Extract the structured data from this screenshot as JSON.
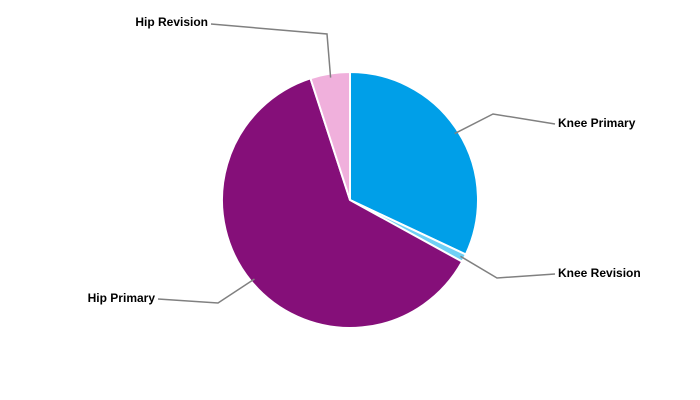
{
  "chart_data": {
    "type": "pie",
    "categories": [
      "Knee Primary",
      "Knee Revision",
      "Hip Primary",
      "Hip Revision"
    ],
    "values": [
      32,
      1,
      62,
      5
    ],
    "colors": [
      "#009fe8",
      "#6fd0f5",
      "#850f79",
      "#f0b0dc"
    ]
  }
}
